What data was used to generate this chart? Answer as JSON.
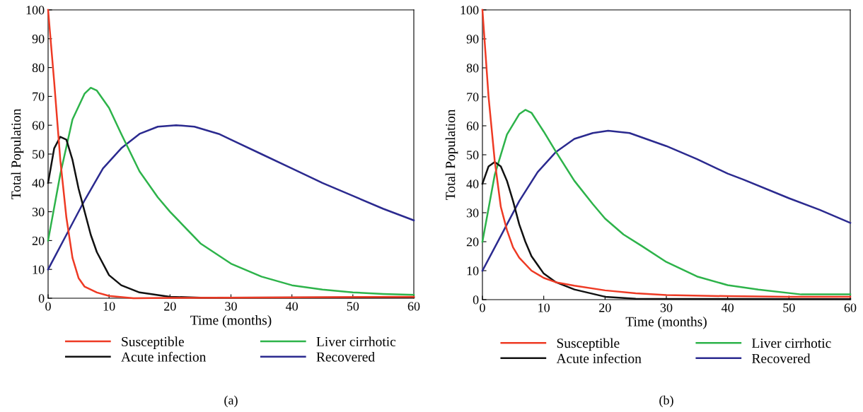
{
  "chart_data": [
    {
      "type": "line",
      "xlabel": "Time (months)",
      "ylabel": "Total Population",
      "xlim": [
        0,
        60
      ],
      "ylim": [
        0,
        100
      ],
      "xticks": [
        0,
        10,
        20,
        30,
        40,
        50,
        60
      ],
      "yticks": [
        0,
        10,
        20,
        30,
        40,
        50,
        60,
        70,
        80,
        90,
        100
      ],
      "grid": false,
      "legend": "bottom",
      "marker": "none",
      "line_style": "solid",
      "annotations": [
        "(a)"
      ],
      "series": [
        {
          "name": "Susceptible",
          "color": "#ee3a24",
          "x": [
            0,
            1,
            2,
            3,
            4,
            5,
            6,
            8,
            10,
            14,
            20,
            30,
            60
          ],
          "values": [
            100,
            75,
            48,
            28,
            14,
            7,
            4,
            2,
            0.8,
            0,
            0.1,
            0.2,
            0.5
          ]
        },
        {
          "name": "Acute infection",
          "color": "#111111",
          "x": [
            0,
            1,
            2,
            3,
            4,
            5,
            6,
            7,
            8,
            10,
            12,
            15,
            20,
            25,
            60
          ],
          "values": [
            40,
            52,
            56,
            55,
            48,
            38,
            30,
            22,
            16,
            8,
            4.5,
            2,
            0.5,
            0.2,
            0.3
          ]
        },
        {
          "name": "Liver cirrhotic",
          "color": "#2db34a",
          "x": [
            0,
            2,
            4,
            6,
            7,
            8,
            10,
            12,
            15,
            18,
            20,
            25,
            30,
            35,
            40,
            45,
            50,
            55,
            60
          ],
          "values": [
            20,
            43,
            62,
            71,
            73,
            72,
            66,
            57,
            44,
            35,
            30,
            19,
            12,
            7.5,
            4.5,
            3,
            2,
            1.5,
            1.2
          ]
        },
        {
          "name": "Recovered",
          "color": "#2b2a8f",
          "x": [
            0,
            3,
            6,
            9,
            12,
            15,
            18,
            21,
            24,
            28,
            30,
            35,
            40,
            45,
            50,
            55,
            60
          ],
          "values": [
            10,
            22,
            34,
            45,
            52,
            57,
            59.5,
            60,
            59.5,
            57,
            55,
            50,
            45,
            40,
            35.5,
            31,
            27
          ]
        }
      ]
    },
    {
      "type": "line",
      "xlabel": "Time (months)",
      "ylabel": "Total Population",
      "xlim": [
        0,
        60
      ],
      "ylim": [
        0,
        100
      ],
      "xticks": [
        0,
        10,
        20,
        30,
        40,
        50,
        60
      ],
      "yticks": [
        0,
        10,
        20,
        30,
        40,
        50,
        60,
        70,
        80,
        90,
        100
      ],
      "grid": false,
      "legend": "bottom",
      "marker": "none",
      "line_style": "solid",
      "annotations": [
        "(b)"
      ],
      "series": [
        {
          "name": "Susceptible",
          "color": "#ee3a24",
          "x": [
            0,
            1,
            2,
            3,
            4,
            5,
            6,
            8,
            10,
            12,
            15,
            20,
            25,
            30,
            40,
            50,
            60
          ],
          "values": [
            100,
            70,
            48,
            32,
            24,
            18,
            14.5,
            10,
            7.5,
            6,
            4.8,
            3.2,
            2.2,
            1.6,
            1.2,
            1,
            1
          ]
        },
        {
          "name": "Acute infection",
          "color": "#111111",
          "x": [
            0,
            1,
            2,
            3,
            4,
            5,
            6,
            7,
            8,
            10,
            12,
            15,
            20,
            25,
            60
          ],
          "values": [
            40,
            46,
            47.5,
            46,
            41,
            34,
            26,
            20,
            15,
            9,
            6,
            3.5,
            1,
            0.3,
            0.2
          ]
        },
        {
          "name": "Liver cirrhotic",
          "color": "#2db34a",
          "x": [
            0,
            2,
            4,
            6,
            7,
            8,
            10,
            12,
            15,
            18,
            20,
            23,
            26,
            30,
            35,
            40,
            45,
            52,
            60
          ],
          "values": [
            20,
            43,
            57,
            64,
            65.5,
            64.5,
            58,
            51,
            41,
            33,
            28,
            22.5,
            18.5,
            13,
            8,
            5,
            3.5,
            1.8,
            1.8
          ]
        },
        {
          "name": "Recovered",
          "color": "#2b2a8f",
          "x": [
            0,
            3,
            6,
            9,
            12,
            15,
            18,
            20.5,
            24,
            30,
            35,
            40,
            42.5,
            50,
            55,
            60
          ],
          "values": [
            10,
            22,
            34,
            44,
            51,
            55.5,
            57.5,
            58.3,
            57.5,
            53,
            48.5,
            43.5,
            41.5,
            35,
            31,
            26.5
          ]
        }
      ]
    }
  ]
}
